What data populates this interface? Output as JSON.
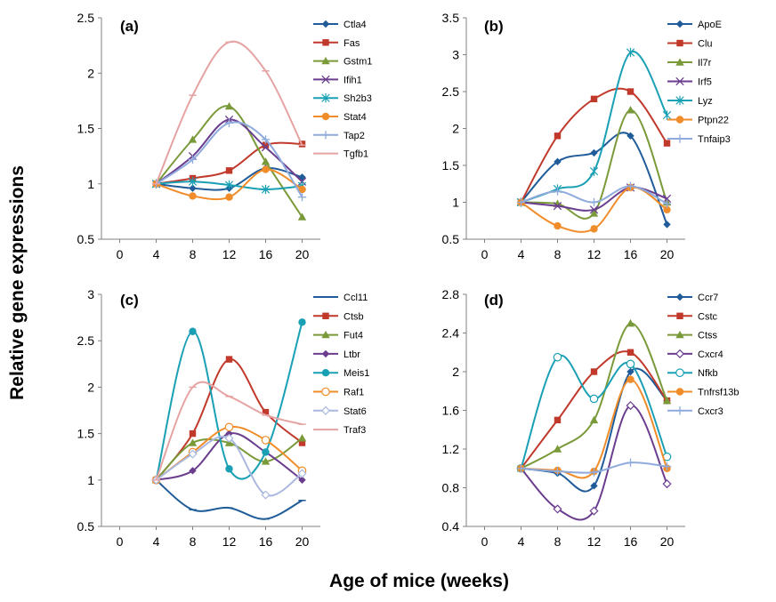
{
  "ylabel": "Relative gene expressions",
  "xlabel": "Age of mice (weeks)",
  "chart_data": [
    {
      "type": "line",
      "panel": "(a)",
      "x_ticks": [
        0,
        4,
        8,
        12,
        16,
        20
      ],
      "y_ticks": [
        0.5,
        1,
        1.5,
        2,
        2.5
      ],
      "x_tick_labels": [
        "0",
        "4",
        "8",
        "12",
        "16",
        "20"
      ],
      "y_tick_labels": [
        "0.5",
        "1",
        "1.5",
        "2",
        "2.5"
      ],
      "xlim": [
        -2,
        22
      ],
      "ylim": [
        0.5,
        2.5
      ],
      "x": [
        4,
        8,
        12,
        16,
        20
      ],
      "series": [
        {
          "name": "Ctla4",
          "color": "#1f5c99",
          "marker": "diamond",
          "values": [
            1.0,
            0.96,
            0.96,
            1.14,
            1.06
          ]
        },
        {
          "name": "Fas",
          "color": "#c0392b",
          "marker": "square",
          "values": [
            1.0,
            1.05,
            1.12,
            1.35,
            1.36
          ]
        },
        {
          "name": "Gstm1",
          "color": "#7a9a3a",
          "marker": "triangle",
          "values": [
            1.0,
            1.4,
            1.7,
            1.2,
            0.7
          ]
        },
        {
          "name": "Ifih1",
          "color": "#6a3d8f",
          "marker": "x",
          "values": [
            1.0,
            1.25,
            1.58,
            1.33,
            1.02
          ]
        },
        {
          "name": "Sh2b3",
          "color": "#1aa0b5",
          "marker": "star",
          "values": [
            1.0,
            1.02,
            0.99,
            0.95,
            0.98
          ]
        },
        {
          "name": "Stat4",
          "color": "#f08c2a",
          "marker": "circle",
          "values": [
            1.0,
            0.89,
            0.88,
            1.13,
            0.95
          ]
        },
        {
          "name": "Tap2",
          "color": "#8faadc",
          "marker": "plus",
          "values": [
            1.0,
            1.22,
            1.55,
            1.4,
            0.88
          ]
        },
        {
          "name": "Tgfb1",
          "color": "#e6a3a3",
          "marker": "dash",
          "values": [
            1.0,
            1.8,
            2.28,
            2.02,
            1.35
          ]
        }
      ]
    },
    {
      "type": "line",
      "panel": "(b)",
      "x_ticks": [
        0,
        4,
        8,
        12,
        16,
        20
      ],
      "y_ticks": [
        0.5,
        1,
        1.5,
        2,
        2.5,
        3,
        3.5
      ],
      "x_tick_labels": [
        "0",
        "4",
        "8",
        "12",
        "16",
        "20"
      ],
      "y_tick_labels": [
        "0.5",
        "1",
        "1.5",
        "2",
        "2.5",
        "3",
        "3.5"
      ],
      "xlim": [
        -2,
        22
      ],
      "ylim": [
        0.5,
        3.5
      ],
      "x": [
        4,
        8,
        12,
        16,
        20
      ],
      "series": [
        {
          "name": "ApoE",
          "color": "#1f5c99",
          "marker": "diamond",
          "values": [
            1.0,
            1.55,
            1.67,
            1.9,
            0.7
          ]
        },
        {
          "name": "Clu",
          "color": "#c0392b",
          "marker": "square",
          "values": [
            1.0,
            1.9,
            2.4,
            2.5,
            1.8
          ]
        },
        {
          "name": "Il7r",
          "color": "#7a9a3a",
          "marker": "triangle",
          "values": [
            1.0,
            0.98,
            0.85,
            2.25,
            1.0
          ]
        },
        {
          "name": "Irf5",
          "color": "#6a3d8f",
          "marker": "x",
          "values": [
            1.0,
            0.95,
            0.9,
            1.2,
            1.05
          ]
        },
        {
          "name": "Lyz",
          "color": "#1aa0b5",
          "marker": "star",
          "values": [
            1.0,
            1.18,
            1.42,
            3.03,
            2.18
          ]
        },
        {
          "name": "Ptpn22",
          "color": "#f08c2a",
          "marker": "circle",
          "values": [
            1.0,
            0.68,
            0.64,
            1.2,
            0.9
          ]
        },
        {
          "name": "Tnfaip3",
          "color": "#8faadc",
          "marker": "plus",
          "values": [
            1.0,
            1.15,
            1.0,
            1.22,
            0.98
          ]
        }
      ]
    },
    {
      "type": "line",
      "panel": "(c)",
      "x_ticks": [
        0,
        4,
        8,
        12,
        16,
        20
      ],
      "y_ticks": [
        0.5,
        1,
        1.5,
        2,
        2.5,
        3
      ],
      "x_tick_labels": [
        "0",
        "4",
        "8",
        "12",
        "16",
        "20"
      ],
      "y_tick_labels": [
        "0.5",
        "1",
        "1.5",
        "2",
        "2.5",
        "3"
      ],
      "xlim": [
        -2,
        22
      ],
      "ylim": [
        0.5,
        3
      ],
      "x": [
        4,
        8,
        12,
        16,
        20
      ],
      "series": [
        {
          "name": "Ccl11",
          "color": "#1f5c99",
          "marker": "dash",
          "values": [
            1.0,
            0.68,
            0.7,
            0.58,
            0.78
          ]
        },
        {
          "name": "Ctsb",
          "color": "#c0392b",
          "marker": "square",
          "values": [
            1.0,
            1.5,
            2.3,
            1.73,
            1.4
          ]
        },
        {
          "name": "Fut4",
          "color": "#7a9a3a",
          "marker": "triangle",
          "values": [
            1.0,
            1.4,
            1.4,
            1.2,
            1.45
          ]
        },
        {
          "name": "Ltbr",
          "color": "#6a3d8f",
          "marker": "diamond",
          "values": [
            1.0,
            1.1,
            1.5,
            1.3,
            1.0
          ]
        },
        {
          "name": "Meis1",
          "color": "#1aa0b5",
          "marker": "circle",
          "values": [
            1.0,
            2.6,
            1.12,
            1.3,
            2.7
          ]
        },
        {
          "name": "Raf1",
          "color": "#f08c2a",
          "marker": "circle-open",
          "values": [
            1.0,
            1.3,
            1.57,
            1.43,
            1.1
          ]
        },
        {
          "name": "Stat6",
          "color": "#aab8e0",
          "marker": "diamond-open",
          "values": [
            1.0,
            1.28,
            1.45,
            0.84,
            1.07
          ]
        },
        {
          "name": "Traf3",
          "color": "#e6a3a3",
          "marker": "dash",
          "values": [
            1.0,
            2.0,
            1.9,
            1.7,
            1.6
          ]
        }
      ]
    },
    {
      "type": "line",
      "panel": "(d)",
      "x_ticks": [
        0,
        4,
        8,
        12,
        16,
        20
      ],
      "y_ticks": [
        0.4,
        0.8,
        1.2,
        1.6,
        2,
        2.4,
        2.8
      ],
      "x_tick_labels": [
        "0",
        "4",
        "8",
        "12",
        "16",
        "20"
      ],
      "y_tick_labels": [
        "0.4",
        "0.8",
        "1.2",
        "1.6",
        "2",
        "2.4",
        "2.8"
      ],
      "xlim": [
        -2,
        22
      ],
      "ylim": [
        0.4,
        2.8
      ],
      "x": [
        4,
        8,
        12,
        16,
        20
      ],
      "series": [
        {
          "name": "Ccr7",
          "color": "#1f5c99",
          "marker": "diamond",
          "values": [
            1.0,
            0.95,
            0.82,
            2.0,
            1.7
          ]
        },
        {
          "name": "Cstc",
          "color": "#c0392b",
          "marker": "square",
          "values": [
            1.0,
            1.5,
            2.0,
            2.2,
            1.7
          ]
        },
        {
          "name": "Ctss",
          "color": "#7a9a3a",
          "marker": "triangle",
          "values": [
            1.0,
            1.2,
            1.5,
            2.5,
            1.7
          ]
        },
        {
          "name": "Cxcr4",
          "color": "#6a3d8f",
          "marker": "diamond-open",
          "values": [
            1.0,
            0.58,
            0.56,
            1.65,
            0.84
          ]
        },
        {
          "name": "Nfkb",
          "color": "#1aa0b5",
          "marker": "circle-open",
          "values": [
            1.0,
            2.15,
            1.72,
            2.08,
            1.12
          ]
        },
        {
          "name": "Tnfrsf13b",
          "color": "#f08c2a",
          "marker": "circle",
          "values": [
            1.0,
            0.98,
            0.97,
            1.92,
            1.0
          ]
        },
        {
          "name": "Cxcr3",
          "color": "#8faadc",
          "marker": "plus",
          "values": [
            1.0,
            0.97,
            0.96,
            1.06,
            1.02
          ]
        }
      ]
    }
  ]
}
